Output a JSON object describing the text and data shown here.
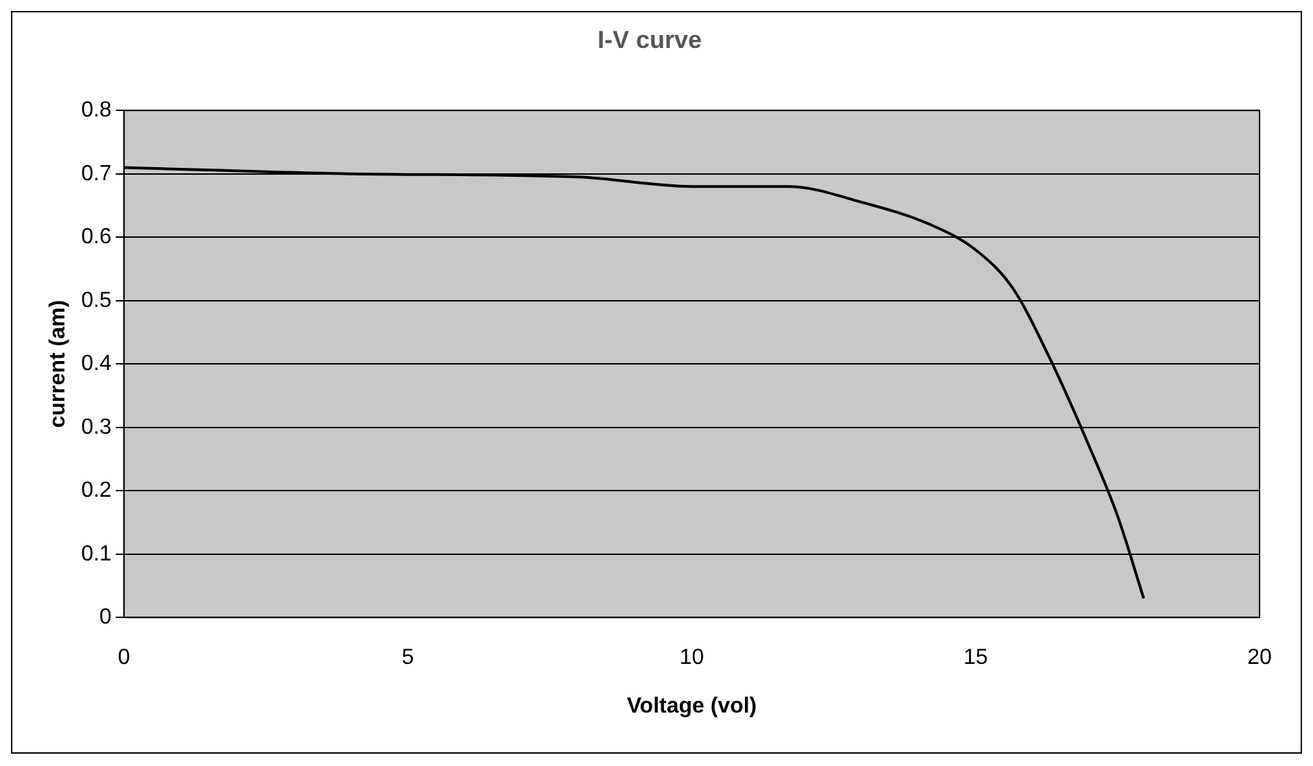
{
  "chart_data": {
    "type": "line",
    "title": "I-V curve",
    "xlabel": "Voltage (vol)",
    "ylabel": "current (am)",
    "x": [
      0,
      4,
      8,
      10,
      11.7,
      13,
      14.2,
      15,
      15.65,
      16.3,
      17,
      17.5,
      17.96
    ],
    "series": [
      {
        "color": "#000000",
        "values": [
          0.71,
          0.7,
          0.695,
          0.68,
          0.68,
          0.655,
          0.62,
          0.58,
          0.52,
          0.41,
          0.27,
          0.16,
          0.03
        ]
      }
    ],
    "xlim": [
      0,
      20
    ],
    "xticks": [
      0,
      5,
      10,
      15,
      20
    ],
    "ylim": [
      0,
      0.8
    ],
    "yticks": [
      0,
      0.1,
      0.2,
      0.3,
      0.4,
      0.5,
      0.6,
      0.7,
      0.8
    ],
    "grid": "y",
    "legend": false,
    "marker": "none",
    "line_style": "solid"
  }
}
